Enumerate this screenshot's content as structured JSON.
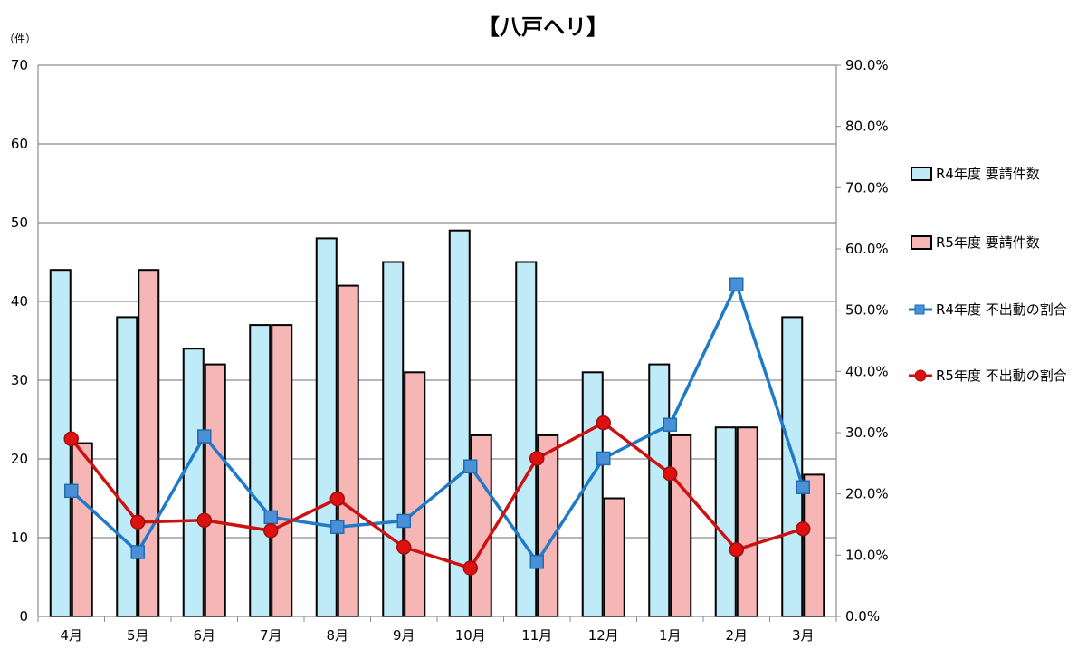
{
  "chart_data": {
    "type": "bar",
    "title": "【八戸ヘリ】",
    "y_unit_label": "（件）",
    "categories": [
      "4月",
      "5月",
      "6月",
      "7月",
      "8月",
      "9月",
      "10月",
      "11月",
      "12月",
      "1月",
      "2月",
      "3月"
    ],
    "ylim": [
      0,
      70
    ],
    "y_ticks": [
      "0",
      "10",
      "20",
      "30",
      "40",
      "50",
      "60",
      "70"
    ],
    "y2lim": [
      0,
      90
    ],
    "y2_ticks": [
      "0.0%",
      "10.0%",
      "20.0%",
      "30.0%",
      "40.0%",
      "50.0%",
      "60.0%",
      "70.0%",
      "80.0%",
      "90.0%"
    ],
    "grid": true,
    "legend_position": "right",
    "series": [
      {
        "name": "R4年度 要請件数",
        "kind": "bar",
        "axis": "left",
        "color": "#bfeaf7",
        "values": [
          44,
          38,
          34,
          37,
          48,
          45,
          49,
          45,
          31,
          32,
          24,
          38
        ]
      },
      {
        "name": "R5年度 要請件数",
        "kind": "bar",
        "axis": "left",
        "color": "#f7b6b6",
        "values": [
          22,
          44,
          32,
          37,
          42,
          31,
          23,
          23,
          15,
          23,
          24,
          18
        ]
      },
      {
        "name": "R4年度 不出動の割合",
        "kind": "line",
        "axis": "right",
        "color": "#1f7bc8",
        "marker": "square",
        "values": [
          20.5,
          10.5,
          29.4,
          16.2,
          14.6,
          15.6,
          24.5,
          8.9,
          25.8,
          31.3,
          54.2,
          21.1
        ]
      },
      {
        "name": "R5年度 不出動の割合",
        "kind": "line",
        "axis": "right",
        "color": "#cc1111",
        "marker": "circle",
        "values": [
          29.0,
          15.4,
          15.7,
          14.0,
          19.2,
          11.3,
          7.9,
          25.8,
          31.6,
          23.3,
          10.9,
          14.3
        ]
      }
    ]
  }
}
